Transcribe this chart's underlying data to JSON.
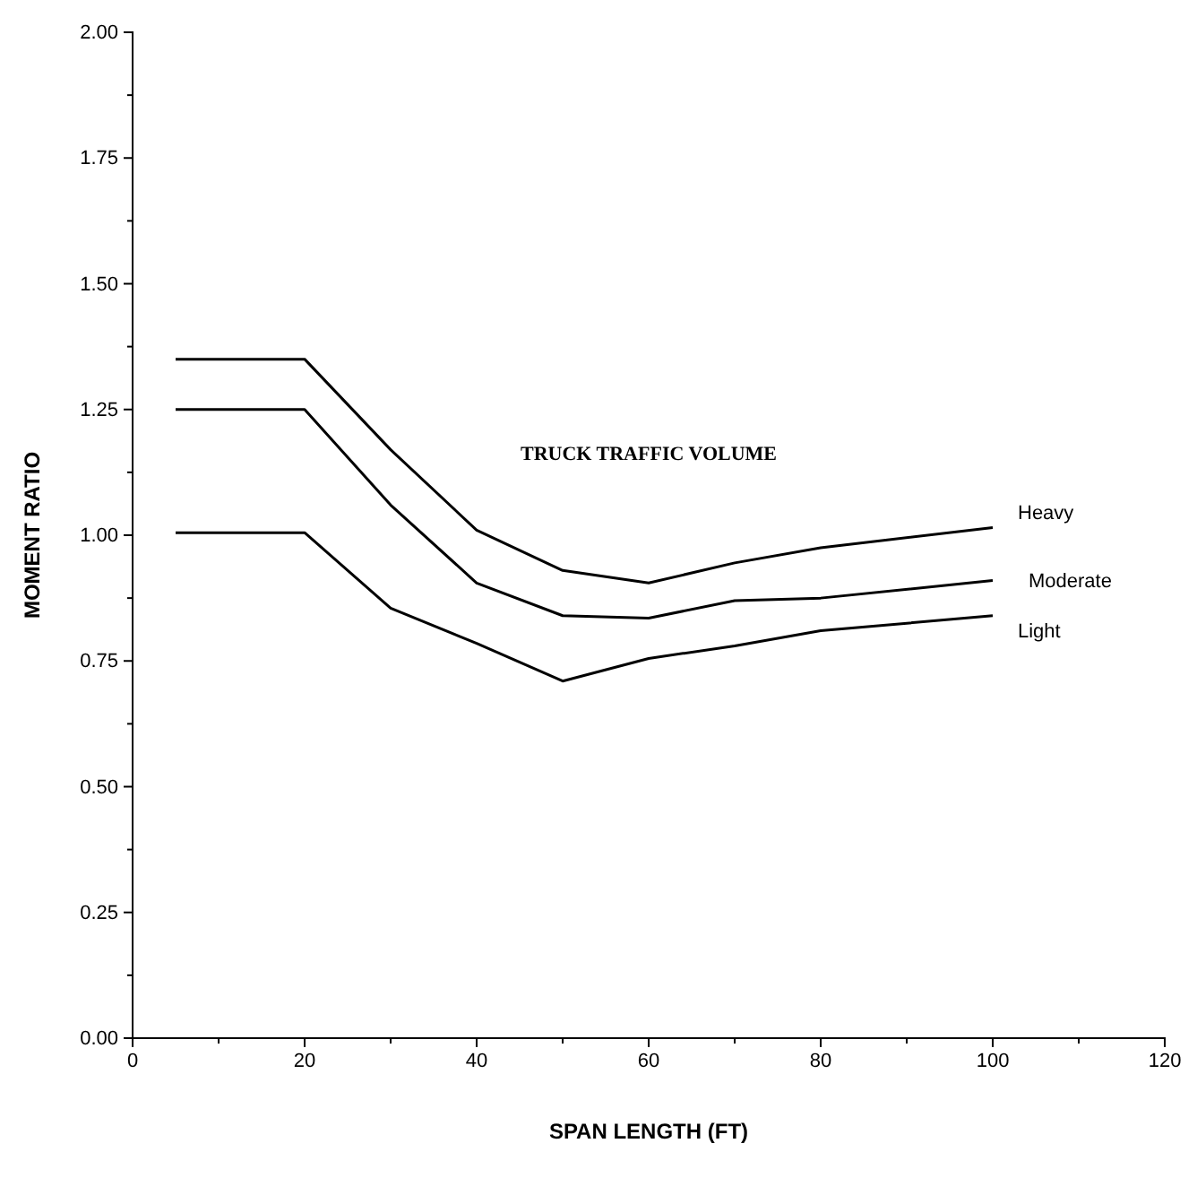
{
  "chart_data": {
    "type": "line",
    "xlabel": "SPAN LENGTH (FT)",
    "ylabel": "MOMENT RATIO",
    "legend_title": "TRUCK TRAFFIC VOLUME",
    "x": [
      5,
      20,
      30,
      40,
      50,
      60,
      70,
      80,
      100
    ],
    "series": [
      {
        "name": "Heavy",
        "color": "#000000",
        "values": [
          1.35,
          1.35,
          1.17,
          1.01,
          0.93,
          0.905,
          0.945,
          0.975,
          1.015
        ]
      },
      {
        "name": "Moderate",
        "color": "#000000",
        "values": [
          1.25,
          1.25,
          1.06,
          0.905,
          0.84,
          0.835,
          0.87,
          0.875,
          0.91
        ]
      },
      {
        "name": "Light",
        "color": "#000000",
        "values": [
          1.005,
          1.005,
          0.855,
          0.785,
          0.71,
          0.755,
          0.78,
          0.81,
          0.84
        ]
      }
    ],
    "xlim": [
      0,
      120
    ],
    "xticks": [
      0,
      {
        "value": 10,
        "label": null
      },
      20,
      {
        "value": 30,
        "label": null
      },
      40,
      {
        "value": 50,
        "label": null
      },
      60,
      {
        "value": 70,
        "label": null
      },
      80,
      {
        "value": 90,
        "label": null
      },
      100,
      {
        "value": 110,
        "label": null
      },
      120
    ],
    "ylim": [
      0,
      2
    ],
    "yticks": [
      {
        "value": 0,
        "label": "0.00"
      },
      {
        "value": 0.125,
        "label": null
      },
      {
        "value": 0.25,
        "label": "0.25"
      },
      {
        "value": 0.375,
        "label": null
      },
      {
        "value": 0.5,
        "label": "0.50"
      },
      {
        "value": 0.625,
        "label": null
      },
      {
        "value": 0.75,
        "label": "0.75"
      },
      {
        "value": 0.875,
        "label": null
      },
      {
        "value": 1,
        "label": "1.00"
      },
      {
        "value": 1.125,
        "label": null
      },
      {
        "value": 1.25,
        "label": "1.25"
      },
      {
        "value": 1.375,
        "label": null
      },
      {
        "value": 1.5,
        "label": "1.50"
      },
      {
        "value": 1.625,
        "label": null
      },
      {
        "value": 1.75,
        "label": "1.75"
      },
      {
        "value": 1.875,
        "label": null
      },
      {
        "value": 2,
        "label": "2.00"
      }
    ],
    "grid": false,
    "marker": "none",
    "line_style": "solid"
  }
}
